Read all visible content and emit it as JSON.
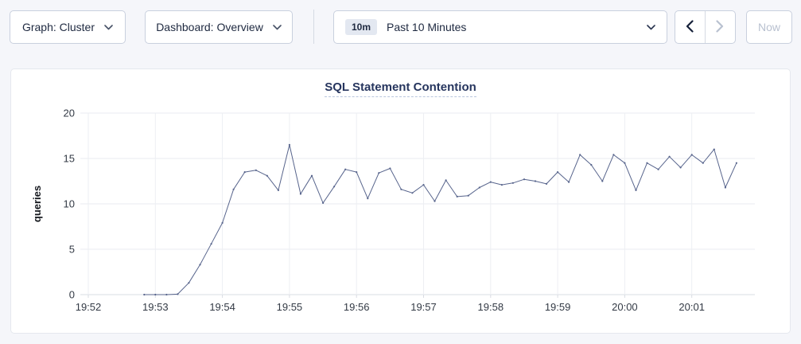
{
  "toolbar": {
    "graph_dropdown_label": "Graph: Cluster",
    "dashboard_dropdown_label": "Dashboard: Overview",
    "time_window_badge": "10m",
    "time_window_label": "Past 10 Minutes",
    "now_button_label": "Now"
  },
  "colors": {
    "line": "#57648c",
    "title": "#26355e",
    "control_text": "#1e2940",
    "disabled": "#b9c1d0",
    "page_background": "#f5f6fa"
  },
  "chart_data": {
    "type": "line",
    "title": "SQL Statement Contention",
    "xlabel": "",
    "ylabel": "queries",
    "ylim": [
      0,
      20
    ],
    "yticks": [
      0,
      5,
      10,
      15,
      20
    ],
    "grid": true,
    "legend": false,
    "xticks": [
      {
        "label": "19:52",
        "t": 0
      },
      {
        "label": "19:53",
        "t": 60
      },
      {
        "label": "19:54",
        "t": 120
      },
      {
        "label": "19:55",
        "t": 180
      },
      {
        "label": "19:56",
        "t": 240
      },
      {
        "label": "19:57",
        "t": 300
      },
      {
        "label": "19:58",
        "t": 360
      },
      {
        "label": "19:59",
        "t": 420
      },
      {
        "label": "20:00",
        "t": 480
      },
      {
        "label": "20:01",
        "t": 540
      }
    ],
    "x_domain_seconds": [
      0,
      596
    ],
    "series": [
      {
        "name": "SQL Statement Contention",
        "color": "#57648c",
        "x_seconds": [
          50,
          60,
          70,
          80,
          90,
          100,
          110,
          120,
          130,
          140,
          150,
          160,
          170,
          180,
          190,
          200,
          210,
          220,
          230,
          240,
          250,
          260,
          270,
          280,
          290,
          300,
          310,
          320,
          330,
          340,
          350,
          360,
          370,
          380,
          390,
          400,
          410,
          420,
          430,
          440,
          450,
          460,
          470,
          480,
          490,
          500,
          510,
          520,
          530,
          540,
          550,
          560,
          570,
          580
        ],
        "values": [
          0,
          0,
          0,
          0.05,
          1.3,
          3.3,
          5.6,
          7.9,
          11.6,
          13.5,
          13.7,
          13.1,
          11.5,
          16.5,
          11.1,
          13.1,
          10.1,
          11.9,
          13.8,
          13.5,
          10.6,
          13.4,
          13.9,
          11.6,
          11.2,
          12.1,
          10.3,
          12.6,
          10.8,
          10.9,
          11.8,
          12.4,
          12.1,
          12.3,
          12.7,
          12.5,
          12.2,
          13.5,
          12.4,
          15.4,
          14.3,
          12.5,
          15.4,
          14.5,
          11.5,
          14.5,
          13.8,
          15.2,
          14.0,
          15.4,
          14.5,
          16.0,
          11.8,
          14.5
        ]
      }
    ]
  }
}
